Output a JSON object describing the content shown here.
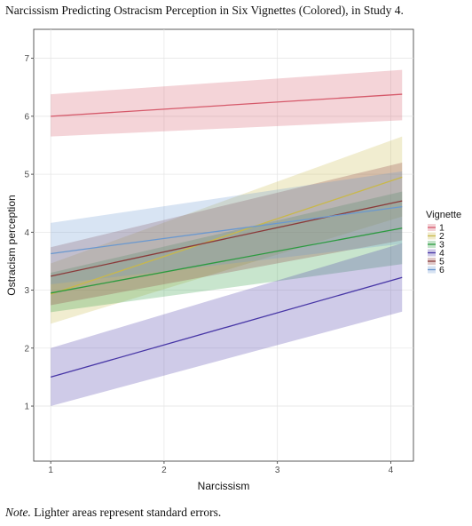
{
  "caption": "Narcissism Predicting Ostracism Perception in Six Vignettes (Colored), in Study 4.",
  "note_prefix": "Note.",
  "note_text": " Lighter areas represent standard errors.",
  "chart_data": {
    "type": "line",
    "xlabel": "Narcissism",
    "ylabel": "Ostracism perception",
    "xlim": [
      0.85,
      4.2
    ],
    "ylim": [
      0.05,
      7.5
    ],
    "x_ticks": [
      1,
      2,
      3,
      4
    ],
    "y_ticks": [
      1,
      2,
      3,
      4,
      5,
      6,
      7
    ],
    "grid": true,
    "legend_title": "Vignette",
    "legend_position": "right",
    "x_range": [
      1,
      4.1
    ],
    "series": [
      {
        "name": "1",
        "color": "#d5596a",
        "y": [
          6.0,
          6.38
        ],
        "lower": [
          5.65,
          5.93
        ],
        "upper": [
          6.38,
          6.8
        ]
      },
      {
        "name": "2",
        "color": "#c9b84a",
        "y": [
          2.93,
          4.95
        ],
        "lower": [
          2.42,
          4.27
        ],
        "upper": [
          3.46,
          5.65
        ]
      },
      {
        "name": "3",
        "color": "#2b9a3f",
        "y": [
          2.95,
          4.07
        ],
        "lower": [
          2.62,
          3.45
        ],
        "upper": [
          3.3,
          4.7
        ]
      },
      {
        "name": "4",
        "color": "#4736a6",
        "y": [
          1.5,
          3.22
        ],
        "lower": [
          1.0,
          2.63
        ],
        "upper": [
          2.0,
          3.81
        ]
      },
      {
        "name": "5",
        "color": "#8a3a3a",
        "y": [
          3.24,
          4.54
        ],
        "lower": [
          2.74,
          3.86
        ],
        "upper": [
          3.74,
          5.2
        ]
      },
      {
        "name": "6",
        "color": "#6a98cf",
        "y": [
          3.63,
          4.44
        ],
        "lower": [
          3.1,
          3.8
        ],
        "upper": [
          4.16,
          5.05
        ]
      }
    ]
  }
}
